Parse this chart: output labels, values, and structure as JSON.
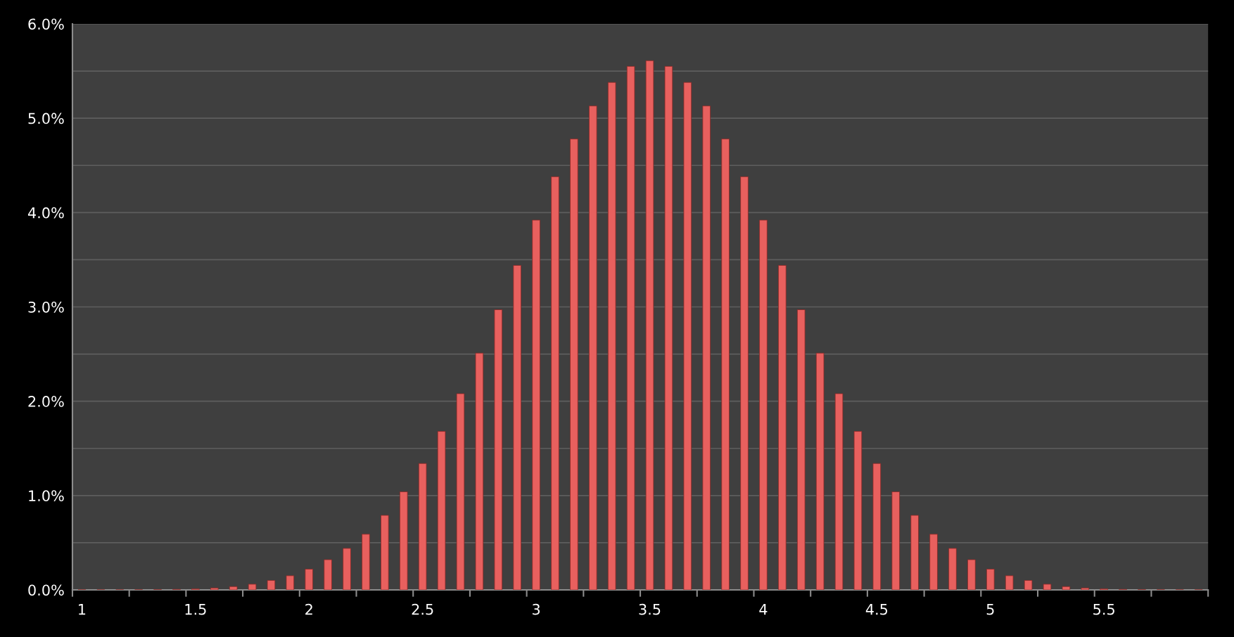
{
  "chart_data": {
    "type": "bar",
    "categories": [
      "1",
      null,
      null,
      null,
      null,
      null,
      "1.5",
      null,
      null,
      null,
      null,
      null,
      "2",
      null,
      null,
      null,
      null,
      null,
      "2.5",
      null,
      null,
      null,
      null,
      null,
      "3",
      null,
      null,
      null,
      null,
      null,
      "3.5",
      null,
      null,
      null,
      null,
      null,
      "4",
      null,
      null,
      null,
      null,
      null,
      "4.5",
      null,
      null,
      null,
      null,
      null,
      "5",
      null,
      null,
      null,
      null,
      null,
      "5.5",
      null,
      null,
      null,
      null,
      null
    ],
    "series": [
      {
        "color": "#e8605e",
        "values": [
          0.001,
          0.001,
          0.001,
          0.002,
          0.003,
          0.005,
          0.01,
          0.02,
          0.035,
          0.06,
          0.1,
          0.15,
          0.22,
          0.32,
          0.44,
          0.59,
          0.79,
          1.04,
          1.34,
          1.68,
          2.08,
          2.51,
          2.97,
          3.44,
          3.92,
          4.38,
          4.78,
          5.13,
          5.38,
          5.55,
          5.61,
          5.55,
          5.38,
          5.13,
          4.78,
          4.38,
          3.92,
          3.44,
          2.97,
          2.51,
          2.08,
          1.68,
          1.34,
          1.04,
          0.79,
          0.59,
          0.44,
          0.32,
          0.22,
          0.15,
          0.1,
          0.06,
          0.035,
          0.02,
          0.01,
          0.005,
          0.003,
          0.002,
          0.001,
          0.001
        ]
      }
    ],
    "ylim": [
      0,
      6
    ],
    "yticks": [
      {
        "value": 0,
        "label": "0.0%"
      },
      {
        "value": 0.5,
        "label": null
      },
      {
        "value": 1,
        "label": "1.0%"
      },
      {
        "value": 1.5,
        "label": null
      },
      {
        "value": 2,
        "label": "2.0%"
      },
      {
        "value": 2.5,
        "label": null
      },
      {
        "value": 3,
        "label": "3.0%"
      },
      {
        "value": 3.5,
        "label": null
      },
      {
        "value": 4,
        "label": "4.0%"
      },
      {
        "value": 4.5,
        "label": null
      },
      {
        "value": 5,
        "label": "5.0%"
      },
      {
        "value": 5.5,
        "label": null
      },
      {
        "value": 6,
        "label": "6.0%"
      }
    ],
    "grid": "y"
  }
}
